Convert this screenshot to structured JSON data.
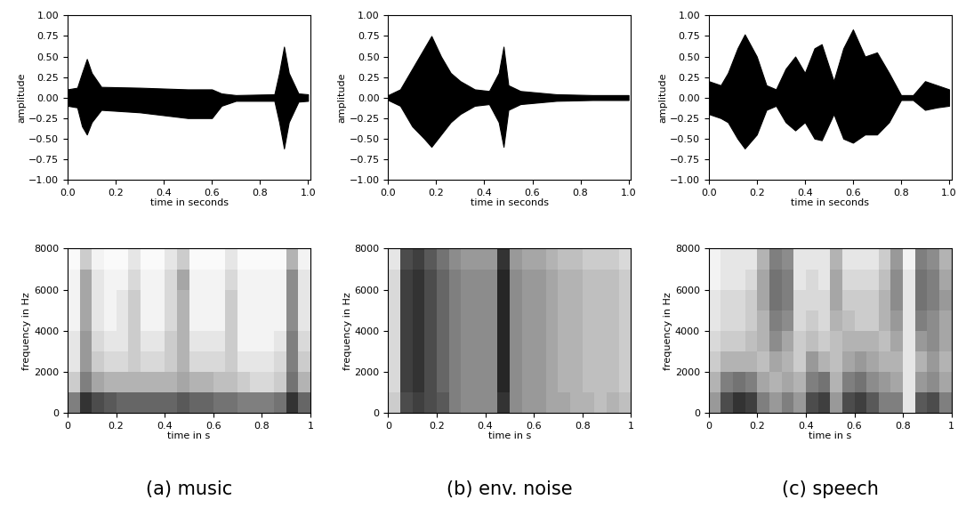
{
  "chart_data": [
    {
      "type": "waveform",
      "color": "#000000",
      "x": [
        0,
        0.04,
        0.06,
        0.08,
        0.1,
        0.14,
        0.3,
        0.5,
        0.6,
        0.64,
        0.7,
        0.86,
        0.88,
        0.9,
        0.92,
        0.96,
        1.0
      ],
      "upper": [
        0.1,
        0.12,
        0.3,
        0.47,
        0.3,
        0.13,
        0.12,
        0.1,
        0.1,
        0.05,
        0.03,
        0.04,
        0.3,
        0.62,
        0.3,
        0.05,
        0.04
      ],
      "lower": [
        -0.1,
        -0.12,
        -0.35,
        -0.45,
        -0.3,
        -0.15,
        -0.18,
        -0.25,
        -0.25,
        -0.1,
        -0.04,
        -0.04,
        -0.3,
        -0.62,
        -0.3,
        -0.05,
        -0.04
      ],
      "x_label": "time in seconds",
      "y_label": "amplitude",
      "xlim": [
        0,
        1.01
      ],
      "ylim": [
        -1,
        1
      ],
      "xticks": [
        0.0,
        0.2,
        0.4,
        0.6,
        0.8,
        1.0
      ],
      "yticks": [
        {
          "value": -1,
          "label": "−1.00"
        },
        {
          "value": -0.75,
          "label": "−0.75"
        },
        {
          "value": -0.5,
          "label": "−0.50"
        },
        {
          "value": -0.25,
          "label": "−0.25"
        },
        {
          "value": 0,
          "label": "0.00"
        },
        {
          "value": 0.25,
          "label": "0.25"
        },
        {
          "value": 0.5,
          "label": "0.50"
        },
        {
          "value": 0.75,
          "label": "0.75"
        },
        {
          "value": 1,
          "label": "1.00"
        }
      ]
    },
    {
      "type": "spectrogram",
      "caption": "(a) music",
      "time_edges": [
        0,
        0.05,
        0.1,
        0.15,
        0.2,
        0.25,
        0.3,
        0.35,
        0.4,
        0.45,
        0.5,
        0.55,
        0.6,
        0.65,
        0.7,
        0.75,
        0.8,
        0.85,
        0.9,
        0.95,
        1.0
      ],
      "freq_edges": [
        0,
        1000,
        2000,
        3000,
        4000,
        5000,
        6000,
        7000,
        8000
      ],
      "crange": [
        0,
        1
      ],
      "cells": [
        [
          0.5,
          0.8,
          0.7,
          0.65,
          0.6,
          0.6,
          0.6,
          0.6,
          0.6,
          0.65,
          0.6,
          0.6,
          0.55,
          0.55,
          0.5,
          0.5,
          0.5,
          0.55,
          0.8,
          0.6
        ],
        [
          0.2,
          0.5,
          0.35,
          0.3,
          0.3,
          0.3,
          0.3,
          0.3,
          0.3,
          0.35,
          0.3,
          0.3,
          0.25,
          0.25,
          0.2,
          0.15,
          0.15,
          0.2,
          0.55,
          0.3
        ],
        [
          0.1,
          0.4,
          0.2,
          0.15,
          0.15,
          0.2,
          0.15,
          0.15,
          0.2,
          0.3,
          0.15,
          0.15,
          0.15,
          0.2,
          0.1,
          0.1,
          0.1,
          0.15,
          0.5,
          0.2
        ],
        [
          0.1,
          0.4,
          0.15,
          0.1,
          0.1,
          0.2,
          0.1,
          0.1,
          0.2,
          0.3,
          0.1,
          0.1,
          0.1,
          0.2,
          0.05,
          0.05,
          0.05,
          0.1,
          0.5,
          0.15
        ],
        [
          0.05,
          0.35,
          0.1,
          0.05,
          0.1,
          0.2,
          0.05,
          0.05,
          0.15,
          0.3,
          0.05,
          0.05,
          0.05,
          0.2,
          0.05,
          0.05,
          0.05,
          0.05,
          0.45,
          0.1
        ],
        [
          0.05,
          0.35,
          0.1,
          0.05,
          0.1,
          0.2,
          0.05,
          0.05,
          0.15,
          0.3,
          0.05,
          0.05,
          0.05,
          0.2,
          0.05,
          0.05,
          0.05,
          0.05,
          0.45,
          0.1
        ],
        [
          0.05,
          0.35,
          0.1,
          0.05,
          0.05,
          0.15,
          0.05,
          0.05,
          0.15,
          0.35,
          0.05,
          0.05,
          0.05,
          0.15,
          0.05,
          0.05,
          0.05,
          0.05,
          0.45,
          0.1
        ],
        [
          0.02,
          0.2,
          0.05,
          0.02,
          0.02,
          0.1,
          0.02,
          0.02,
          0.1,
          0.2,
          0.02,
          0.02,
          0.02,
          0.1,
          0.02,
          0.02,
          0.02,
          0.02,
          0.3,
          0.05
        ]
      ],
      "x_label": "time in s",
      "y_label": "frequency in Hz",
      "xlim": [
        0,
        1.0
      ],
      "ylim": [
        0,
        8000
      ],
      "xticks": [
        0,
        0.2,
        0.4,
        0.6,
        0.8,
        1
      ],
      "yticks": [
        0,
        2000,
        4000,
        6000,
        8000
      ]
    },
    {
      "type": "waveform",
      "color": "#000000",
      "x": [
        0,
        0.05,
        0.1,
        0.15,
        0.18,
        0.22,
        0.26,
        0.3,
        0.36,
        0.42,
        0.46,
        0.48,
        0.5,
        0.55,
        0.7,
        0.85,
        1.0
      ],
      "upper": [
        0.03,
        0.1,
        0.35,
        0.6,
        0.75,
        0.5,
        0.3,
        0.2,
        0.1,
        0.08,
        0.3,
        0.62,
        0.15,
        0.08,
        0.04,
        0.03,
        0.03
      ],
      "lower": [
        -0.03,
        -0.1,
        -0.35,
        -0.5,
        -0.6,
        -0.45,
        -0.3,
        -0.2,
        -0.1,
        -0.08,
        -0.3,
        -0.6,
        -0.15,
        -0.08,
        -0.04,
        -0.03,
        -0.03
      ],
      "x_label": "time in seconds",
      "y_label": "amplitude",
      "xlim": [
        0,
        1.01
      ],
      "ylim": [
        -1,
        1
      ],
      "xticks": [
        0.0,
        0.2,
        0.4,
        0.6,
        0.8,
        1.0
      ],
      "yticks": [
        {
          "value": -1,
          "label": "−1.00"
        },
        {
          "value": -0.75,
          "label": "−0.75"
        },
        {
          "value": -0.5,
          "label": "−0.50"
        },
        {
          "value": -0.25,
          "label": "−0.25"
        },
        {
          "value": 0,
          "label": "0.00"
        },
        {
          "value": 0.25,
          "label": "0.25"
        },
        {
          "value": 0.5,
          "label": "0.50"
        },
        {
          "value": 0.75,
          "label": "0.75"
        },
        {
          "value": 1,
          "label": "1.00"
        }
      ]
    },
    {
      "type": "spectrogram",
      "caption": "(b) env. noise",
      "time_edges": [
        0,
        0.05,
        0.1,
        0.15,
        0.2,
        0.25,
        0.3,
        0.35,
        0.4,
        0.45,
        0.5,
        0.55,
        0.6,
        0.65,
        0.7,
        0.75,
        0.8,
        0.85,
        0.9,
        0.95,
        1.0
      ],
      "freq_edges": [
        0,
        1000,
        2000,
        3000,
        4000,
        5000,
        6000,
        7000,
        8000
      ],
      "crange": [
        0,
        1
      ],
      "cells": [
        [
          0.2,
          0.7,
          0.75,
          0.7,
          0.65,
          0.5,
          0.45,
          0.45,
          0.45,
          0.8,
          0.45,
          0.4,
          0.4,
          0.35,
          0.35,
          0.3,
          0.3,
          0.25,
          0.3,
          0.25
        ],
        [
          0.15,
          0.75,
          0.8,
          0.7,
          0.6,
          0.5,
          0.45,
          0.45,
          0.45,
          0.85,
          0.45,
          0.4,
          0.4,
          0.35,
          0.3,
          0.3,
          0.25,
          0.25,
          0.25,
          0.2
        ],
        [
          0.15,
          0.75,
          0.8,
          0.7,
          0.6,
          0.5,
          0.45,
          0.45,
          0.45,
          0.85,
          0.45,
          0.4,
          0.4,
          0.35,
          0.3,
          0.3,
          0.25,
          0.25,
          0.25,
          0.2
        ],
        [
          0.15,
          0.75,
          0.8,
          0.7,
          0.6,
          0.5,
          0.45,
          0.45,
          0.45,
          0.85,
          0.45,
          0.4,
          0.4,
          0.35,
          0.3,
          0.3,
          0.25,
          0.25,
          0.25,
          0.2
        ],
        [
          0.15,
          0.75,
          0.8,
          0.7,
          0.6,
          0.5,
          0.45,
          0.45,
          0.45,
          0.85,
          0.45,
          0.4,
          0.4,
          0.35,
          0.3,
          0.3,
          0.25,
          0.25,
          0.25,
          0.2
        ],
        [
          0.15,
          0.75,
          0.8,
          0.7,
          0.6,
          0.5,
          0.45,
          0.45,
          0.45,
          0.85,
          0.45,
          0.4,
          0.4,
          0.35,
          0.3,
          0.3,
          0.25,
          0.25,
          0.25,
          0.2
        ],
        [
          0.15,
          0.75,
          0.8,
          0.7,
          0.6,
          0.5,
          0.45,
          0.45,
          0.45,
          0.85,
          0.45,
          0.4,
          0.4,
          0.35,
          0.3,
          0.3,
          0.25,
          0.25,
          0.25,
          0.2
        ],
        [
          0.1,
          0.7,
          0.75,
          0.65,
          0.55,
          0.45,
          0.4,
          0.4,
          0.4,
          0.8,
          0.4,
          0.35,
          0.35,
          0.3,
          0.25,
          0.25,
          0.2,
          0.2,
          0.2,
          0.15
        ]
      ],
      "x_label": "time in s",
      "y_label": "frequency in Hz",
      "xlim": [
        0,
        1.0
      ],
      "ylim": [
        0,
        8000
      ],
      "xticks": [
        0,
        0.2,
        0.4,
        0.6,
        0.8,
        1
      ],
      "yticks": [
        0,
        2000,
        4000,
        6000,
        8000
      ]
    },
    {
      "type": "waveform",
      "color": "#000000",
      "x": [
        0,
        0.05,
        0.08,
        0.12,
        0.15,
        0.2,
        0.24,
        0.28,
        0.32,
        0.36,
        0.4,
        0.44,
        0.47,
        0.52,
        0.56,
        0.6,
        0.65,
        0.7,
        0.75,
        0.8,
        0.85,
        0.9,
        0.95,
        1.0
      ],
      "upper": [
        0.2,
        0.15,
        0.3,
        0.6,
        0.77,
        0.5,
        0.15,
        0.1,
        0.35,
        0.5,
        0.3,
        0.6,
        0.65,
        0.2,
        0.6,
        0.83,
        0.5,
        0.55,
        0.3,
        0.03,
        0.03,
        0.2,
        0.15,
        0.1
      ],
      "lower": [
        -0.2,
        -0.25,
        -0.3,
        -0.5,
        -0.62,
        -0.45,
        -0.15,
        -0.1,
        -0.3,
        -0.4,
        -0.3,
        -0.5,
        -0.52,
        -0.2,
        -0.5,
        -0.55,
        -0.45,
        -0.45,
        -0.3,
        -0.03,
        -0.03,
        -0.15,
        -0.12,
        -0.1
      ],
      "x_label": "time in seconds",
      "y_label": "amplitude",
      "xlim": [
        0,
        1.01
      ],
      "ylim": [
        -1,
        1
      ],
      "xticks": [
        0.0,
        0.2,
        0.4,
        0.6,
        0.8,
        1.0
      ],
      "yticks": [
        {
          "value": -1,
          "label": "−1.00"
        },
        {
          "value": -0.75,
          "label": "−0.75"
        },
        {
          "value": -0.5,
          "label": "−0.50"
        },
        {
          "value": -0.25,
          "label": "−0.25"
        },
        {
          "value": 0,
          "label": "0.00"
        },
        {
          "value": 0.25,
          "label": "0.25"
        },
        {
          "value": 0.5,
          "label": "0.50"
        },
        {
          "value": 0.75,
          "label": "0.75"
        },
        {
          "value": 1,
          "label": "1.00"
        }
      ]
    },
    {
      "type": "spectrogram",
      "caption": "(c) speech",
      "time_edges": [
        0,
        0.05,
        0.1,
        0.15,
        0.2,
        0.25,
        0.3,
        0.35,
        0.4,
        0.45,
        0.5,
        0.55,
        0.6,
        0.65,
        0.7,
        0.75,
        0.8,
        0.85,
        0.9,
        0.95,
        1.0
      ],
      "freq_edges": [
        0,
        1000,
        2000,
        3000,
        4000,
        5000,
        6000,
        7000,
        8000
      ],
      "crange": [
        0,
        1
      ],
      "cells": [
        [
          0.4,
          0.7,
          0.8,
          0.75,
          0.5,
          0.4,
          0.5,
          0.4,
          0.7,
          0.75,
          0.4,
          0.7,
          0.75,
          0.65,
          0.5,
          0.5,
          0.1,
          0.65,
          0.7,
          0.5
        ],
        [
          0.3,
          0.5,
          0.55,
          0.5,
          0.35,
          0.3,
          0.35,
          0.3,
          0.5,
          0.55,
          0.3,
          0.5,
          0.55,
          0.45,
          0.4,
          0.35,
          0.1,
          0.4,
          0.45,
          0.35
        ],
        [
          0.2,
          0.3,
          0.3,
          0.3,
          0.25,
          0.35,
          0.3,
          0.2,
          0.4,
          0.3,
          0.25,
          0.35,
          0.4,
          0.35,
          0.3,
          0.3,
          0.1,
          0.3,
          0.4,
          0.3
        ],
        [
          0.15,
          0.2,
          0.2,
          0.25,
          0.3,
          0.45,
          0.35,
          0.2,
          0.25,
          0.2,
          0.25,
          0.3,
          0.3,
          0.3,
          0.25,
          0.35,
          0.1,
          0.4,
          0.45,
          0.35
        ],
        [
          0.1,
          0.15,
          0.15,
          0.2,
          0.3,
          0.5,
          0.45,
          0.15,
          0.2,
          0.15,
          0.3,
          0.25,
          0.2,
          0.2,
          0.3,
          0.4,
          0.1,
          0.5,
          0.45,
          0.35
        ],
        [
          0.1,
          0.15,
          0.15,
          0.2,
          0.35,
          0.55,
          0.5,
          0.15,
          0.15,
          0.15,
          0.35,
          0.2,
          0.2,
          0.2,
          0.3,
          0.45,
          0.1,
          0.55,
          0.5,
          0.4
        ],
        [
          0.05,
          0.1,
          0.1,
          0.15,
          0.35,
          0.55,
          0.5,
          0.1,
          0.15,
          0.1,
          0.35,
          0.15,
          0.15,
          0.15,
          0.25,
          0.45,
          0.1,
          0.55,
          0.5,
          0.35
        ],
        [
          0.05,
          0.1,
          0.1,
          0.1,
          0.3,
          0.5,
          0.45,
          0.1,
          0.1,
          0.1,
          0.3,
          0.1,
          0.1,
          0.1,
          0.2,
          0.4,
          0.05,
          0.5,
          0.45,
          0.3
        ]
      ],
      "x_label": "time in s",
      "y_label": "frequency in Hz",
      "xlim": [
        0,
        1.0
      ],
      "ylim": [
        0,
        8000
      ],
      "xticks": [
        0,
        0.2,
        0.4,
        0.6,
        0.8,
        1
      ],
      "yticks": [
        0,
        2000,
        4000,
        6000,
        8000
      ]
    }
  ]
}
